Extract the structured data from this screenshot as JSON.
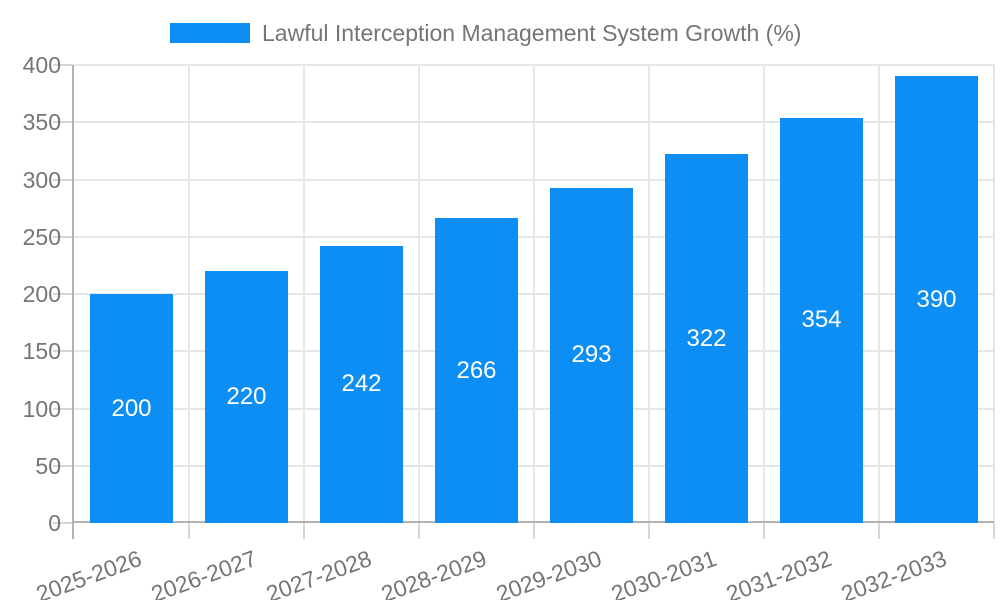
{
  "chart_data": {
    "type": "bar",
    "title": "Lawful Interception Management System Growth (%)",
    "legend": {
      "label": "Lawful Interception Management System Growth (%)",
      "position": "top"
    },
    "categories": [
      "2025-2026",
      "2026-2027",
      "2027-2028",
      "2028-2029",
      "2029-2030",
      "2030-2031",
      "2031-2032",
      "2032-2033"
    ],
    "values": [
      200,
      220,
      242,
      266,
      293,
      322,
      354,
      390
    ],
    "value_labels": [
      "200",
      "220",
      "242",
      "266",
      "293",
      "322",
      "354",
      "390"
    ],
    "xlabel": "",
    "ylabel": "",
    "ylim": [
      0,
      400
    ],
    "yticks": [
      0,
      50,
      100,
      150,
      200,
      250,
      300,
      350,
      400
    ],
    "grid": true,
    "legend_position": "top",
    "colors": {
      "bar": "#0d8ef4",
      "value_label": "#ffffff",
      "axis_text": "#757575",
      "gridline": "#e6e6e6",
      "axis_line": "#b2b2b2",
      "tick": "#d6d6d6",
      "background": "#ffffff"
    }
  }
}
